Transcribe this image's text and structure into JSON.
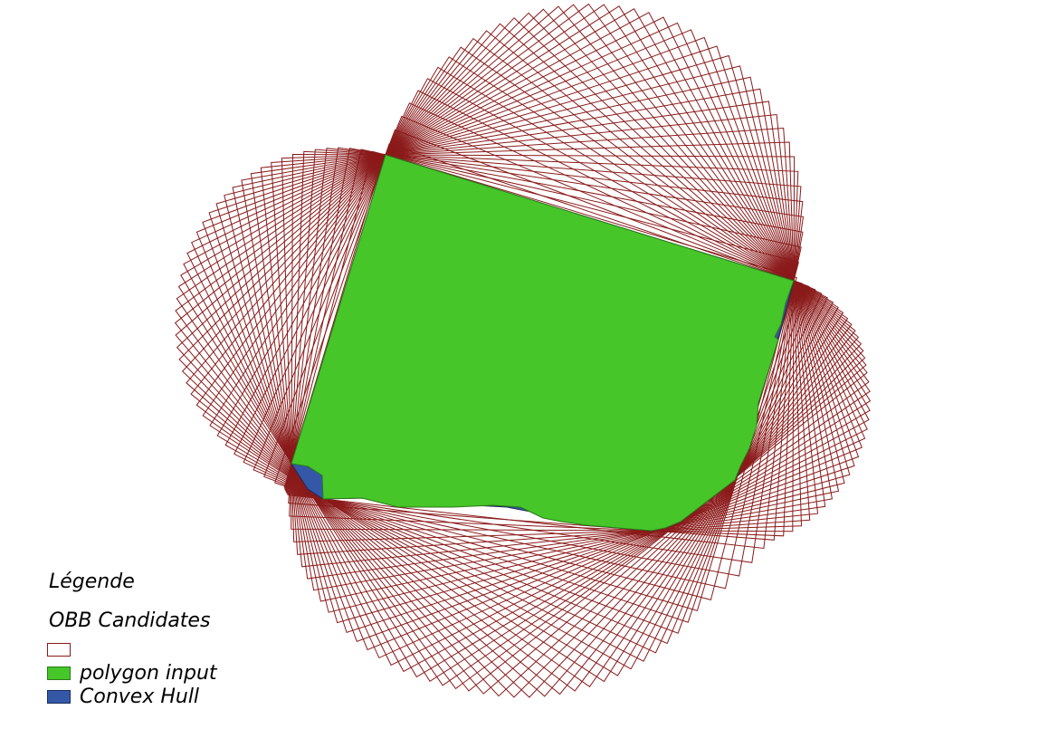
{
  "legend": {
    "title": "Légende",
    "group_label": "OBB Candidates",
    "items": [
      {
        "label": "",
        "fill": "#ffffff",
        "stroke": "#8b1a1a"
      },
      {
        "label": "polygon input",
        "fill": "#46c629",
        "stroke": "#2c7a1a"
      },
      {
        "label": "Convex Hull",
        "fill": "#3557a8",
        "stroke": "#1a2d5c"
      }
    ]
  },
  "colors": {
    "candidate_stroke": "#8b1a1a",
    "polygon_fill": "#46c629",
    "hull_fill": "#3557a8"
  }
}
